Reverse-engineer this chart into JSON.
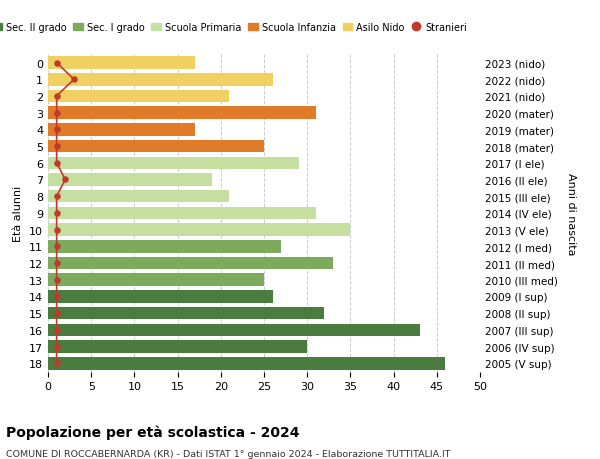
{
  "ages": [
    18,
    17,
    16,
    15,
    14,
    13,
    12,
    11,
    10,
    9,
    8,
    7,
    6,
    5,
    4,
    3,
    2,
    1,
    0
  ],
  "years": [
    "2005 (V sup)",
    "2006 (IV sup)",
    "2007 (III sup)",
    "2008 (II sup)",
    "2009 (I sup)",
    "2010 (III med)",
    "2011 (II med)",
    "2012 (I med)",
    "2013 (V ele)",
    "2014 (IV ele)",
    "2015 (III ele)",
    "2016 (II ele)",
    "2017 (I ele)",
    "2018 (mater)",
    "2019 (mater)",
    "2020 (mater)",
    "2021 (nido)",
    "2022 (nido)",
    "2023 (nido)"
  ],
  "bar_values": [
    46,
    30,
    43,
    32,
    26,
    25,
    33,
    27,
    35,
    31,
    21,
    19,
    29,
    25,
    17,
    31,
    21,
    26,
    17
  ],
  "bar_colors": [
    "#4a7c3f",
    "#4a7c3f",
    "#4a7c3f",
    "#4a7c3f",
    "#4a7c3f",
    "#7dab5e",
    "#7dab5e",
    "#7dab5e",
    "#c5dfa0",
    "#c5dfa0",
    "#c5dfa0",
    "#c5dfa0",
    "#c5dfa0",
    "#e07b2a",
    "#e07b2a",
    "#e07b2a",
    "#f0d060",
    "#f0d060",
    "#f0d060"
  ],
  "stranieri_values": [
    1,
    1,
    1,
    1,
    1,
    1,
    1,
    1,
    1,
    1,
    1,
    2,
    1,
    1,
    1,
    1,
    1,
    3,
    1
  ],
  "stranieri_color": "#c0392b",
  "legend_labels": [
    "Sec. II grado",
    "Sec. I grado",
    "Scuola Primaria",
    "Scuola Infanzia",
    "Asilo Nido",
    "Stranieri"
  ],
  "legend_colors": [
    "#4a7c3f",
    "#7dab5e",
    "#c5dfa0",
    "#e07b2a",
    "#f0d060",
    "#c0392b"
  ],
  "title": "Popolazione per età scolastica - 2024",
  "subtitle": "COMUNE DI ROCCABERNARDA (KR) - Dati ISTAT 1° gennaio 2024 - Elaborazione TUTTITALIA.IT",
  "ylabel_left": "Età alunni",
  "ylabel_right": "Anni di nascita",
  "xlim": [
    0,
    50
  ],
  "xticks": [
    0,
    5,
    10,
    15,
    20,
    25,
    30,
    35,
    40,
    45,
    50
  ],
  "background_color": "#ffffff",
  "grid_color": "#cccccc"
}
